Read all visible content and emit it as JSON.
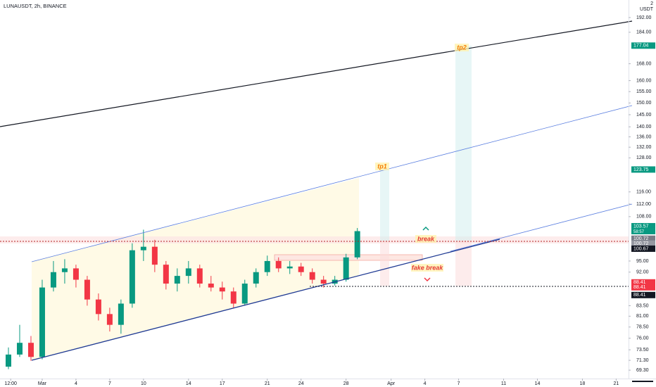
{
  "chart_data": {
    "type": "candlestick",
    "title": "LUNAUSDT, 2h, BINANCE",
    "unit": "USDT",
    "corner_label": "2",
    "log": true,
    "up_color": "#089981",
    "down_color": "#f23645",
    "x": [
      -3,
      -2,
      -1,
      0,
      1,
      2,
      3,
      4,
      5,
      6,
      7,
      8,
      9,
      10,
      11,
      12,
      13,
      14,
      15,
      16,
      17,
      18,
      19,
      20,
      21,
      22,
      23,
      24,
      25,
      26,
      27,
      28
    ],
    "open": [
      70,
      72.5,
      75,
      72,
      88,
      92,
      93,
      90,
      85,
      81.5,
      79,
      84,
      98,
      99,
      94,
      89,
      91,
      93,
      89,
      88,
      87,
      84,
      89,
      92,
      95,
      93,
      93.5,
      92,
      90,
      89,
      90,
      96
    ],
    "high": [
      74,
      79,
      76.5,
      90,
      95,
      95.5,
      94,
      91,
      86.5,
      83,
      85,
      100,
      104,
      101,
      95,
      93,
      95,
      94,
      91,
      89.5,
      88,
      90,
      93,
      96.5,
      96,
      95,
      94.5,
      93,
      91,
      91,
      97,
      104.5
    ],
    "low": [
      69.5,
      72,
      71.2,
      71.5,
      87,
      89,
      88,
      83.5,
      80,
      77.5,
      77,
      83,
      95,
      92,
      87.5,
      87,
      89,
      88,
      87,
      85,
      83,
      83.5,
      88,
      91,
      92,
      91.5,
      91,
      89,
      88,
      88.5,
      89.5,
      95.5
    ],
    "close": [
      72.5,
      75,
      72,
      88,
      92,
      93,
      90,
      85,
      81.5,
      79,
      84,
      98,
      99,
      94,
      89,
      91,
      93,
      89,
      88,
      87,
      84,
      89,
      92,
      95,
      93,
      93.5,
      92,
      90,
      89,
      90,
      96,
      103.57
    ],
    "xlim": [
      -3.75,
      52.1
    ],
    "xticks": [
      {
        "value": -2.8,
        "label": "12:00"
      },
      {
        "value": 0,
        "label": "Mar"
      },
      {
        "value": 3,
        "label": "4"
      },
      {
        "value": 6,
        "label": "7"
      },
      {
        "value": 9,
        "label": "10"
      },
      {
        "value": 13,
        "label": "14"
      },
      {
        "value": 16,
        "label": "17"
      },
      {
        "value": 20,
        "label": "21"
      },
      {
        "value": 23,
        "label": "24"
      },
      {
        "value": 27,
        "label": "28"
      },
      {
        "value": 31,
        "label": "Apr"
      },
      {
        "value": 34,
        "label": "4"
      },
      {
        "value": 37,
        "label": "7"
      },
      {
        "value": 41,
        "label": "11"
      },
      {
        "value": 44,
        "label": "14"
      },
      {
        "value": 48,
        "label": "18"
      },
      {
        "value": 51,
        "label": "21"
      }
    ],
    "ylim": [
      67.64,
      201.98
    ],
    "yticks": [
      {
        "value": 192,
        "label": "192.00"
      },
      {
        "value": 184,
        "label": "184.00"
      },
      {
        "value": 168,
        "label": "168.00"
      },
      {
        "value": 160,
        "label": "160.00"
      },
      {
        "value": 155,
        "label": "155.00"
      },
      {
        "value": 150,
        "label": "150.00"
      },
      {
        "value": 145,
        "label": "145.00"
      },
      {
        "value": 140,
        "label": "140.00"
      },
      {
        "value": 136,
        "label": "136.00"
      },
      {
        "value": 132,
        "label": "132.00"
      },
      {
        "value": 128,
        "label": "128.00"
      },
      {
        "value": 116,
        "label": "116.00"
      },
      {
        "value": 112,
        "label": "112.00"
      },
      {
        "value": 108,
        "label": "108.00"
      },
      {
        "value": 95,
        "label": "95.00"
      },
      {
        "value": 92,
        "label": "92.00"
      },
      {
        "value": 83.5,
        "label": "83.50"
      },
      {
        "value": 81,
        "label": "81.00"
      },
      {
        "value": 78.5,
        "label": "78.50"
      },
      {
        "value": 76,
        "label": "76.00"
      },
      {
        "value": 73.5,
        "label": "73.50"
      },
      {
        "value": 71.3,
        "label": "71.30"
      },
      {
        "value": 69.3,
        "label": "69.30"
      }
    ],
    "price_labels": [
      {
        "value": 177.04,
        "label": "177.04",
        "color": "#089981"
      },
      {
        "value": 123.75,
        "label": "123.75",
        "color": "#089981"
      },
      {
        "value": 103.57,
        "label": "103.57",
        "color": "#089981"
      },
      {
        "value": 100.72,
        "label": "100.72",
        "color": "#787b86"
      },
      {
        "value": 100.72,
        "label": "100.72",
        "color": "#9598a1"
      },
      {
        "value": 100.67,
        "label": "100.67",
        "color": "#131722"
      },
      {
        "value": 88.41,
        "label": "88.41",
        "color": "#f23645"
      },
      {
        "value": 88.41,
        "label": "88.41",
        "color": "#f23645"
      },
      {
        "value": 88.41,
        "label": "88.41",
        "color": "#131722"
      }
    ],
    "countdown": "58:57",
    "annotations": [
      "tp1",
      "tp2",
      "break",
      "fake break"
    ]
  }
}
